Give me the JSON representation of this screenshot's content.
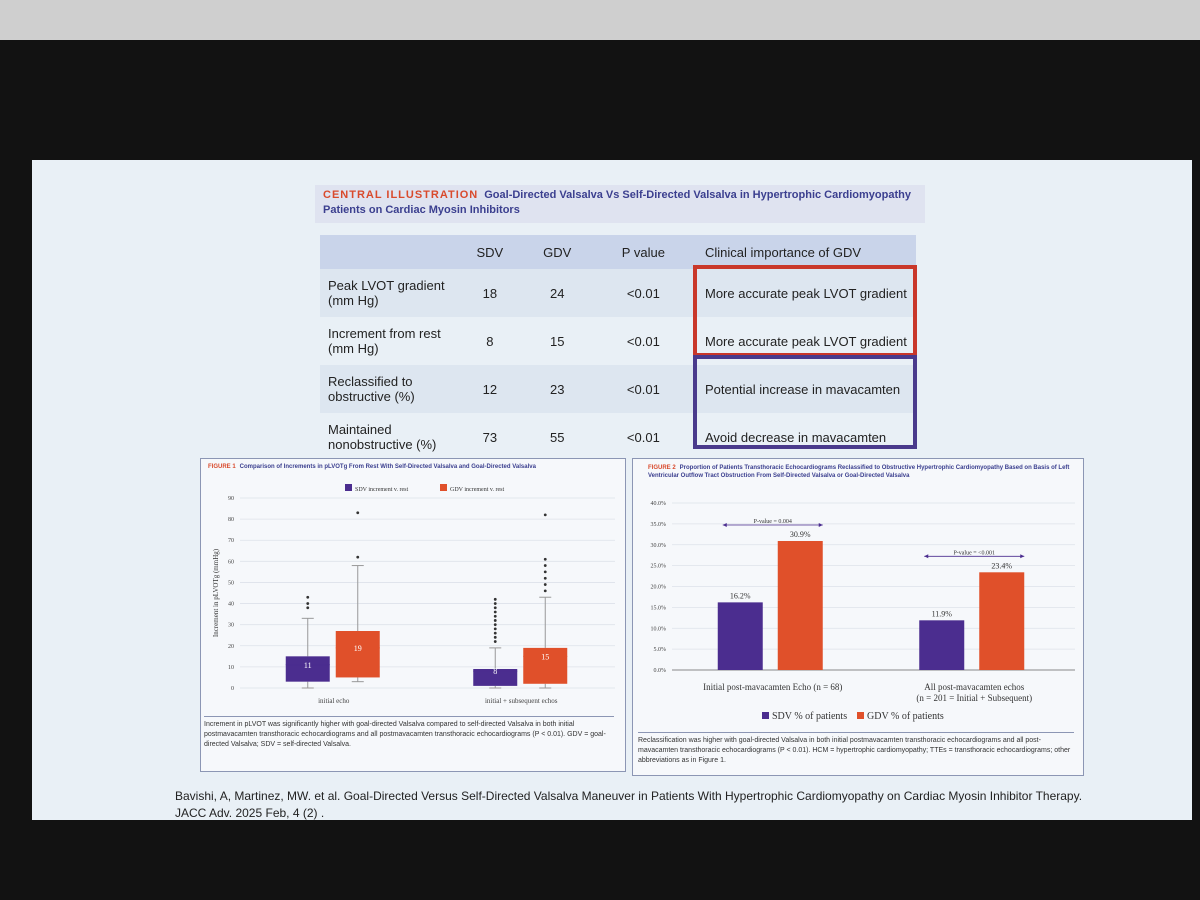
{
  "header": {
    "label": "CENTRAL ILLUSTRATION",
    "title": "Goal-Directed Valsalva Vs Self-Directed Valsalva in Hypertrophic Cardiomyopathy Patients on Cardiac Myosin Inhibitors"
  },
  "table": {
    "columns": [
      "SDV",
      "GDV",
      "P value",
      "Clinical importance of GDV"
    ],
    "rows": [
      [
        "Peak LVOT gradient (mm Hg)",
        "18",
        "24",
        "<0.01",
        "More accurate peak LVOT gradient"
      ],
      [
        "Increment from rest (mm Hg)",
        "8",
        "15",
        "<0.01",
        "More accurate peak LVOT gradient"
      ],
      [
        "Reclassified to obstructive (%)",
        "12",
        "23",
        "<0.01",
        "Potential increase in mavacamten"
      ],
      [
        "Maintained nonobstructive (%)",
        "73",
        "55",
        "<0.01",
        "Avoid decrease in mavacamten"
      ]
    ]
  },
  "chart_data": [
    {
      "type": "box",
      "label": "FIGURE 1",
      "title": "Comparison of Increments in pLVOTg From Rest With Self-Directed Valsalva and Goal-Directed Valsalva",
      "ylabel": "Increment in pLVOTg (mmHg)",
      "categories": [
        "initial echo",
        "initial + subsequent echos"
      ],
      "ylim": [
        0,
        90
      ],
      "yticks": [
        0,
        10,
        20,
        30,
        40,
        50,
        60,
        70,
        80,
        90
      ],
      "grid": true,
      "series": [
        {
          "name": "SDV increment v. rest",
          "color": "#4b2d8f",
          "boxes": [
            {
              "min": 0,
              "q1": 3,
              "median": 11,
              "q3": 15,
              "max": 33,
              "outliers": [
                38,
                40,
                43
              ]
            },
            {
              "min": 0,
              "q1": 1,
              "median": 8,
              "q3": 9,
              "max": 19,
              "outliers": [
                22,
                24,
                26,
                28,
                30,
                32,
                34,
                36,
                38,
                40,
                42
              ]
            }
          ]
        },
        {
          "name": "GDV increment v. rest",
          "color": "#e0502a",
          "boxes": [
            {
              "min": 3,
              "q1": 5,
              "median": 19,
              "q3": 27,
              "max": 58,
              "outliers": [
                62,
                83
              ]
            },
            {
              "min": 0,
              "q1": 2,
              "median": 15,
              "q3": 19,
              "max": 43,
              "outliers": [
                46,
                49,
                52,
                55,
                58,
                61,
                82
              ]
            }
          ]
        }
      ],
      "caption": "Increment in pLVOT was significantly higher with goal-directed Valsalva compared to self-directed Valsalva in both initial postmavacamten transthoracic echocardiograms and all postmavacamten transthoracic echocardiograms (P < 0.01). GDV = goal-directed Valsalva; SDV = self-directed Valsalva."
    },
    {
      "type": "bar",
      "label": "FIGURE 2",
      "title": "Proportion of Patients Transthoracic Echocardiograms Reclassified to Obstructive Hypertrophic Cardiomyopathy Based on Basis of Left Ventricular Outflow Tract Obstruction From Self-Directed Valsalva or Goal-Directed Valsalva",
      "categories": [
        "Initial post-mavacamten Echo (n = 68)",
        "All post-mavacamten echos (n = 201 = Initial + Subsequent)"
      ],
      "ylim": [
        0,
        40
      ],
      "yticks": [
        {
          "value": 0,
          "label": "0.0%"
        },
        {
          "value": 5,
          "label": "5.0%"
        },
        {
          "value": 10,
          "label": "10.0%"
        },
        {
          "value": 15,
          "label": "15.0%"
        },
        {
          "value": 20,
          "label": "20.0%"
        },
        {
          "value": 25,
          "label": "25.0%"
        },
        {
          "value": 30,
          "label": "30.0%"
        },
        {
          "value": 35,
          "label": "35.0%"
        },
        {
          "value": 40,
          "label": "40.0%"
        }
      ],
      "grid": true,
      "series": [
        {
          "name": "SDV % of patients",
          "color": "#4b2d8f",
          "values": [
            16.2,
            11.9
          ],
          "value_labels": [
            "16.2%",
            "11.9%"
          ]
        },
        {
          "name": "GDV % of patients",
          "color": "#e0502a",
          "values": [
            30.9,
            23.4
          ],
          "value_labels": [
            "30.9%",
            "23.4%"
          ]
        }
      ],
      "annotations": [
        "P-value = 0.004",
        "P-value = <0.001"
      ],
      "caption": "Reclassification was higher with goal-directed Valsalva in both initial postmavacamten transthoracic echocardiograms and all post-mavacamten transthoracic echocardiograms (P < 0.01). HCM = hypertrophic cardiomyopathy; TTEs = transthoracic echocardiograms; other abbreviations as in Figure 1."
    }
  ],
  "citation": [
    "Bavishi, A, Martinez, MW. et al. Goal-Directed Versus Self-Directed Valsalva Maneuver in Patients With Hypertrophic Cardiomyopathy on Cardiac Myosin Inhibitor Therapy.",
    "JACC Adv. 2025 Feb, 4 (2) ."
  ]
}
